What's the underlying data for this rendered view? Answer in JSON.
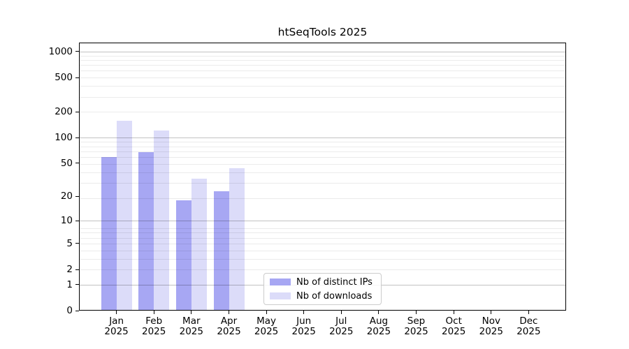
{
  "chart_data": {
    "type": "bar",
    "title": "htSeqTools 2025",
    "months": [
      "Jan",
      "Feb",
      "Mar",
      "Apr",
      "May",
      "Jun",
      "Jul",
      "Aug",
      "Sep",
      "Oct",
      "Nov",
      "Dec"
    ],
    "year": "2025",
    "y_ticks": [
      0,
      1,
      2,
      5,
      10,
      20,
      50,
      100,
      200,
      500,
      1000
    ],
    "y_scale": "log1p",
    "ylim": [
      0,
      1270
    ],
    "grid": {
      "major_color": "rgba(0,0,0,0.24)",
      "minor_color": "rgba(0,0,0,0.08)",
      "major_hex_on_white": "#c2c2c2",
      "minor_hex_on_white": "#ebebeb"
    },
    "series": [
      {
        "name": "Nb of distinct IPs",
        "color": "#a7a7f3",
        "values": [
          59,
          68,
          18,
          23,
          null,
          null,
          null,
          null,
          null,
          null,
          null,
          null
        ]
      },
      {
        "name": "Nb of downloads",
        "color": "#dcdcf9",
        "values": [
          158,
          120,
          33,
          44,
          null,
          null,
          null,
          null,
          null,
          null,
          null,
          null
        ]
      }
    ],
    "legend_position": "lower center"
  }
}
